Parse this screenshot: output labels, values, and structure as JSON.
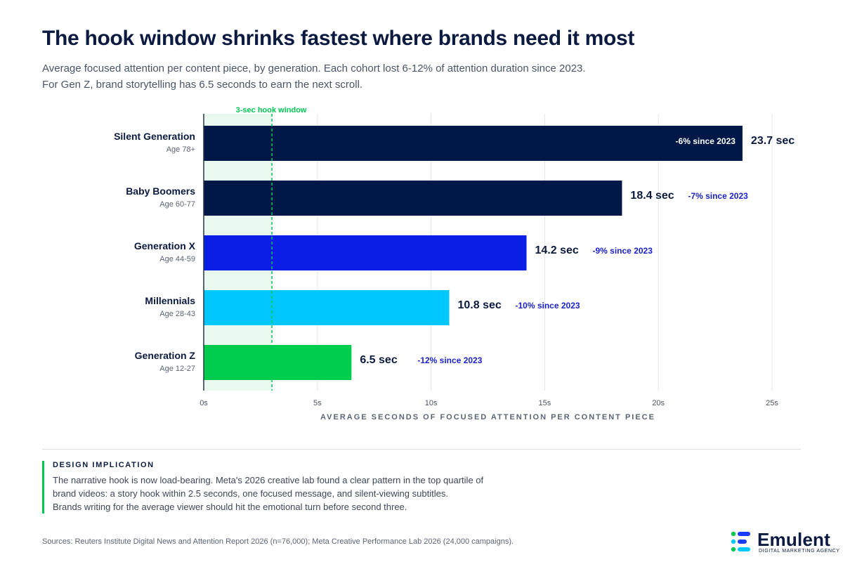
{
  "title": "The hook window shrinks fastest where brands need it most",
  "subtitle": {
    "line1": "Average focused attention per content piece, by generation. Each cohort lost 6-12% of attention duration since 2023.",
    "line2": "For Gen Z, brand storytelling has 6.5 seconds to earn the next scroll."
  },
  "chart_data": {
    "type": "bar",
    "orientation": "horizontal",
    "categories": [
      "Silent Generation",
      "Baby Boomers",
      "Generation X",
      "Millennials",
      "Generation Z"
    ],
    "sublabels": [
      "Age 78+",
      "Age 60-77",
      "Age 44-59",
      "Age 28-43",
      "Age 12-27"
    ],
    "values": [
      23.7,
      18.4,
      14.2,
      10.8,
      6.5
    ],
    "value_labels": [
      "23.7 sec",
      "18.4 sec",
      "14.2 sec",
      "10.8 sec",
      "6.5 sec"
    ],
    "change_labels": [
      "-6% since 2023",
      "-7% since 2023",
      "-9% since 2023",
      "-10% since 2023",
      "-12% since 2023"
    ],
    "colors": [
      "#001848",
      "#001848",
      "#0b1ee6",
      "#00c8ff",
      "#00cc4e"
    ],
    "xlim": [
      0,
      25
    ],
    "xticks": [
      0,
      5,
      10,
      15,
      20,
      25
    ],
    "xtick_labels": [
      "0s",
      "5s",
      "10s",
      "15s",
      "20s",
      "25s"
    ],
    "xlabel": "AVERAGE SECONDS OF FOCUSED ATTENTION PER CONTENT PIECE",
    "grid": true,
    "reference_line": {
      "x": 3,
      "label": "3-sec hook window",
      "color": "#00c853"
    }
  },
  "implication": {
    "heading": "DESIGN IMPLICATION",
    "lines": [
      "The narrative hook is now load-bearing. Meta's 2026 creative lab found a clear pattern in the top quartile of",
      "brand videos: a story hook within 2.5 seconds, one focused message, and silent-viewing subtitles.",
      "Brands writing for the average viewer should hit the emotional turn before second three."
    ]
  },
  "sources": "Sources: Reuters Institute Digital News and Attention Report 2026 (n=76,000); Meta Creative Performance Lab 2026 (24,000 campaigns).",
  "logo": {
    "name": "Emulent",
    "tagline": "DIGITAL MARKETING AGENCY",
    "mark_colors": [
      "#00c853",
      "#1a3cff",
      "#00c8ff"
    ]
  }
}
